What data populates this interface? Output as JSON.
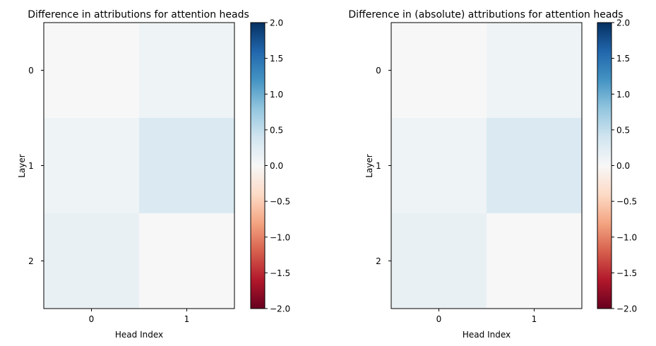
{
  "chart_data": [
    {
      "type": "heatmap",
      "title": "Difference in attributions for attention heads",
      "xlabel": "Head Index",
      "ylabel": "Layer",
      "x_ticks": [
        "0",
        "1"
      ],
      "y_ticks": [
        "0",
        "1",
        "2"
      ],
      "values": [
        [
          0.0,
          0.1
        ],
        [
          0.1,
          0.3
        ],
        [
          0.15,
          0.0
        ]
      ],
      "colormap": "RdBu",
      "colorbar": {
        "vmin": -2.0,
        "vmax": 2.0,
        "ticks": [
          "2.0",
          "1.5",
          "1.0",
          "0.5",
          "0.0",
          "−0.5",
          "−1.0",
          "−1.5",
          "−2.0"
        ]
      }
    },
    {
      "type": "heatmap",
      "title": "Difference in (absolute) attributions for attention heads",
      "xlabel": "Head Index",
      "ylabel": "Layer",
      "x_ticks": [
        "0",
        "1"
      ],
      "y_ticks": [
        "0",
        "1",
        "2"
      ],
      "values": [
        [
          0.0,
          0.1
        ],
        [
          0.1,
          0.3
        ],
        [
          0.15,
          0.0
        ]
      ],
      "colormap": "RdBu",
      "colorbar": {
        "vmin": -2.0,
        "vmax": 2.0,
        "ticks": [
          "2.0",
          "1.5",
          "1.0",
          "0.5",
          "0.0",
          "−0.5",
          "−1.0",
          "−1.5",
          "−2.0"
        ]
      }
    }
  ]
}
